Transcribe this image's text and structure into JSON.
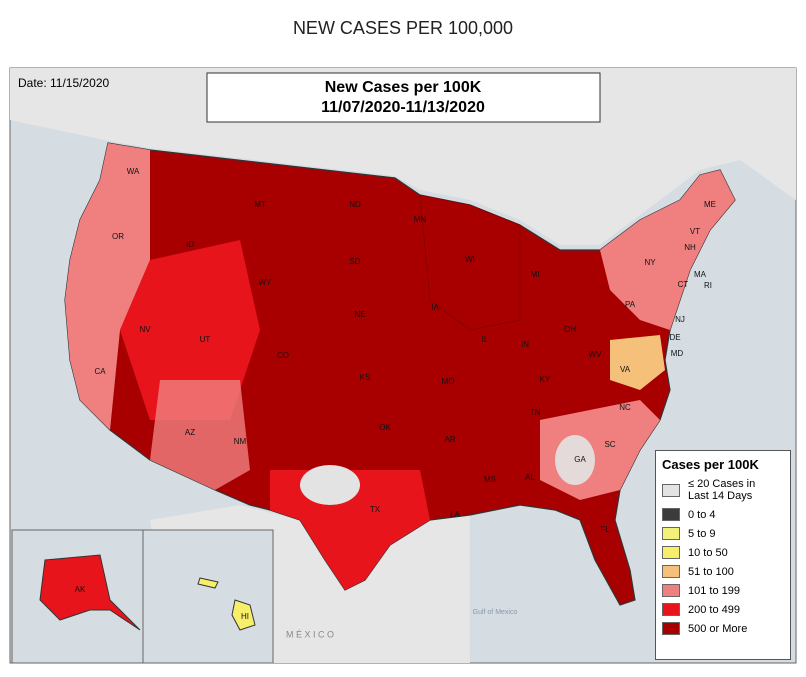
{
  "page_title": "NEW CASES PER 100,000",
  "map": {
    "date": "Date: 11/15/2020",
    "title_lines": [
      "New Cases per 100K",
      "11/07/2020-11/13/2020"
    ],
    "state_labels": [
      "WA",
      "OR",
      "CA",
      "NV",
      "ID",
      "MT",
      "WY",
      "UT",
      "AZ",
      "NM",
      "CO",
      "ND",
      "SD",
      "NE",
      "KS",
      "OK",
      "TX",
      "MN",
      "IA",
      "MO",
      "AR",
      "LA",
      "WI",
      "IL",
      "MI",
      "IN",
      "OH",
      "KY",
      "TN",
      "MS",
      "AL",
      "GA",
      "FL",
      "SC",
      "NC",
      "VA",
      "WV",
      "PA",
      "NY",
      "VT",
      "NH",
      "ME",
      "MA",
      "CT",
      "RI",
      "NJ",
      "DE",
      "MD",
      "AK",
      "HI"
    ],
    "place_labels": [
      "M É X I C O",
      "Gulf of Mexico"
    ],
    "legend": {
      "title": "Cases per 100K",
      "items": [
        {
          "label": "≤ 20 Cases in Last 14 Days",
          "color": "#e3e3e3"
        },
        {
          "label": "0 to 4",
          "color": "#3b3b3b"
        },
        {
          "label": "5 to 9",
          "color": "#f2f27a"
        },
        {
          "label": "10 to 50",
          "color": "#f7ef6a"
        },
        {
          "label": "51 to 100",
          "color": "#f5c07a"
        },
        {
          "label": "101 to 199",
          "color": "#f08080"
        },
        {
          "label": "200 to 499",
          "color": "#e8141c"
        },
        {
          "label": "500 or More",
          "color": "#a80000"
        }
      ]
    }
  }
}
